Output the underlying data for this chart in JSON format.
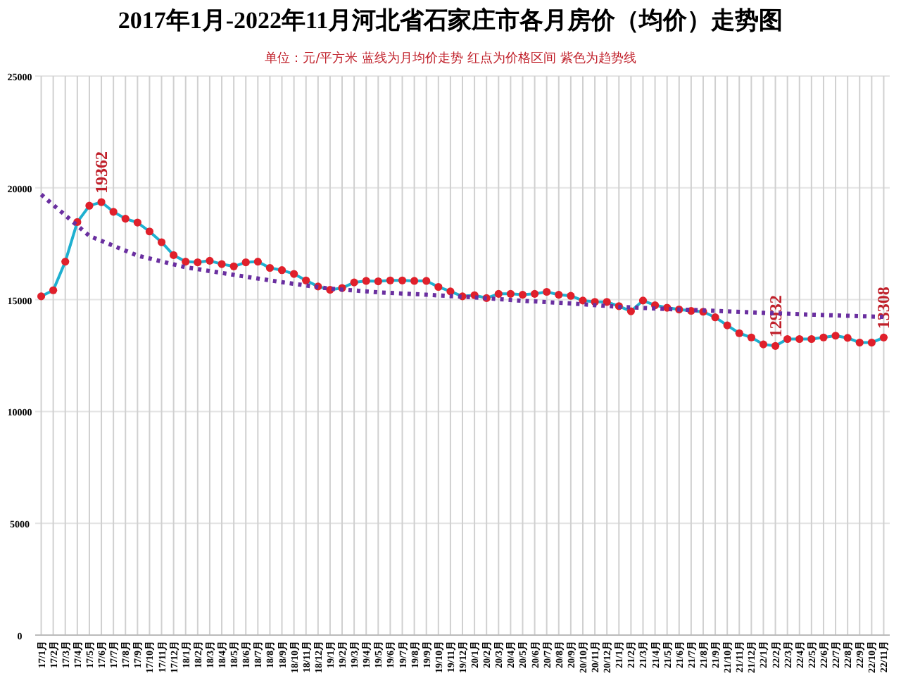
{
  "chart_data": {
    "type": "line",
    "title": "2017年1月-2022年11月河北省石家庄市各月房价（均价）走势图",
    "subtitle": "单位：元/平方米   蓝线为月均价走势   红点为价格区间   紫色为趋势线",
    "categories": [
      "17/1月",
      "17/2月",
      "17/3月",
      "17/4月",
      "17/5月",
      "17/6月",
      "17/7月",
      "17/8月",
      "17/9月",
      "17/10月",
      "17/11月",
      "17/12月",
      "18/1月",
      "18/2月",
      "18/3月",
      "18/4月",
      "18/5月",
      "18/6月",
      "18/7月",
      "18/8月",
      "18/9月",
      "18/10月",
      "18/11月",
      "18/12月",
      "19/1月",
      "19/2月",
      "19/3月",
      "19/4月",
      "19/5月",
      "19/6月",
      "19/7月",
      "19/8月",
      "19/9月",
      "19/10月",
      "19/11月",
      "19/12月",
      "20/1月",
      "20/2月",
      "20/3月",
      "20/4月",
      "20/5月",
      "20/6月",
      "20/7月",
      "20/8月",
      "20/9月",
      "20/10月",
      "20/11月",
      "20/12月",
      "21/1月",
      "21/2月",
      "21/3月",
      "21/4月",
      "21/5月",
      "21/6月",
      "21/7月",
      "21/8月",
      "21/9月",
      "21/10月",
      "21/11月",
      "21/12月",
      "22/1月",
      "22/2月",
      "22/3月",
      "22/4月",
      "22/5月",
      "22/6月",
      "22/7月",
      "22/8月",
      "22/9月",
      "22/10月",
      "22/11月"
    ],
    "ylim": [
      0,
      25000
    ],
    "yticks": [
      0,
      5000,
      10000,
      15000,
      20000,
      25000
    ],
    "grid": true,
    "series": [
      {
        "color": "#1fb0d0",
        "marker": "circle",
        "line_style": "solid",
        "colors": [
          "#e0202b",
          "#e0202b",
          "#e0202b",
          "#e0202b",
          "#e0202b",
          "#e0202b",
          "#e0202b",
          "#e0202b",
          "#e0202b",
          "#e0202b",
          "#e0202b",
          "#e0202b",
          "#e0202b",
          "#e0202b",
          "#e0202b",
          "#e0202b",
          "#e0202b",
          "#e0202b",
          "#e0202b",
          "#e0202b",
          "#e0202b",
          "#e0202b",
          "#e0202b",
          "#e0202b",
          "#e0202b",
          "#e0202b",
          "#e0202b",
          "#e0202b",
          "#e0202b",
          "#e0202b",
          "#e0202b",
          "#e0202b",
          "#e0202b",
          "#e0202b",
          "#e0202b",
          "#e0202b",
          "#e0202b",
          "#e0202b",
          "#e0202b",
          "#e0202b",
          "#e0202b",
          "#e0202b",
          "#e0202b",
          "#e0202b",
          "#e0202b",
          "#e0202b",
          "#e0202b",
          "#e0202b",
          "#e0202b",
          "#e0202b",
          "#e0202b",
          "#e0202b",
          "#e0202b",
          "#e0202b",
          "#e0202b",
          "#e0202b",
          "#e0202b",
          "#e0202b",
          "#e0202b",
          "#e0202b",
          "#e0202b",
          "#e0202b",
          "#e0202b",
          "#e0202b",
          "#e0202b",
          "#e0202b",
          "#e0202b",
          "#e0202b",
          "#e0202b",
          "#e0202b",
          "#e0202b"
        ],
        "values": [
          15150,
          15420,
          16700,
          18470,
          19200,
          19362,
          18930,
          18620,
          18450,
          18050,
          17570,
          16990,
          16700,
          16670,
          16740,
          16590,
          16490,
          16670,
          16700,
          16420,
          16320,
          16150,
          15860,
          15590,
          15440,
          15520,
          15770,
          15840,
          15820,
          15860,
          15860,
          15840,
          15840,
          15570,
          15370,
          15150,
          15200,
          15070,
          15260,
          15260,
          15220,
          15260,
          15350,
          15220,
          15170,
          14960,
          14900,
          14900,
          14710,
          14480,
          14960,
          14750,
          14640,
          14560,
          14500,
          14460,
          14210,
          13850,
          13500,
          13310,
          13000,
          12932,
          13240,
          13240,
          13240,
          13310,
          13390,
          13290,
          13080,
          13080,
          13308
        ],
        "value_labels": [
          null,
          null,
          null,
          null,
          null,
          "19362",
          null,
          null,
          null,
          null,
          null,
          null,
          null,
          null,
          null,
          null,
          null,
          null,
          null,
          null,
          null,
          null,
          null,
          null,
          null,
          null,
          null,
          null,
          null,
          null,
          null,
          null,
          null,
          null,
          null,
          null,
          null,
          null,
          null,
          null,
          null,
          null,
          null,
          null,
          null,
          null,
          null,
          null,
          null,
          null,
          null,
          null,
          null,
          null,
          null,
          null,
          null,
          null,
          null,
          null,
          null,
          "12932",
          null,
          null,
          null,
          null,
          null,
          null,
          null,
          null,
          "13308"
        ]
      },
      {
        "color": "#6a2fa0",
        "marker": "none",
        "line_style": "dotted",
        "x": [
          "17/1月",
          "17/5月",
          "17/9月",
          "18/1月",
          "18/5月",
          "18/9月",
          "19/1月",
          "19/5月",
          "19/9月",
          "20/1月",
          "20/5月",
          "20/9月",
          "21/1月",
          "21/5月",
          "21/9月",
          "22/1月",
          "22/5月",
          "22/11月"
        ],
        "values": [
          19700,
          17850,
          16970,
          16450,
          16110,
          15780,
          15490,
          15330,
          15220,
          15100,
          14950,
          14830,
          14680,
          14580,
          14500,
          14410,
          14330,
          14230
        ]
      }
    ]
  }
}
